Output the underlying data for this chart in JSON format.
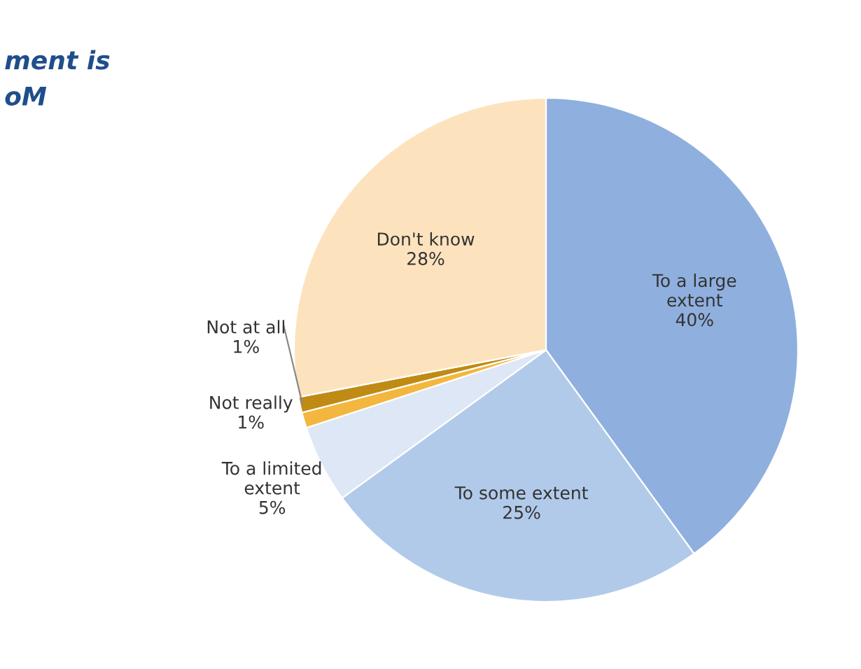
{
  "chart_data": {
    "type": "pie",
    "title": "ment is\noM",
    "categories": [
      "To a large extent",
      "To some extent",
      "To a limited extent",
      "Not really",
      "Not at all",
      "Don't know"
    ],
    "values": [
      40,
      25,
      5,
      1,
      1,
      28
    ],
    "value_labels": [
      "40%",
      "25%",
      "5%",
      "1%",
      "1%",
      "28%"
    ],
    "colors": [
      "#8fb0de",
      "#b2caea",
      "#dde7f5",
      "#f3b63f",
      "#c08b14",
      "#fde3bd"
    ],
    "legend": false
  }
}
